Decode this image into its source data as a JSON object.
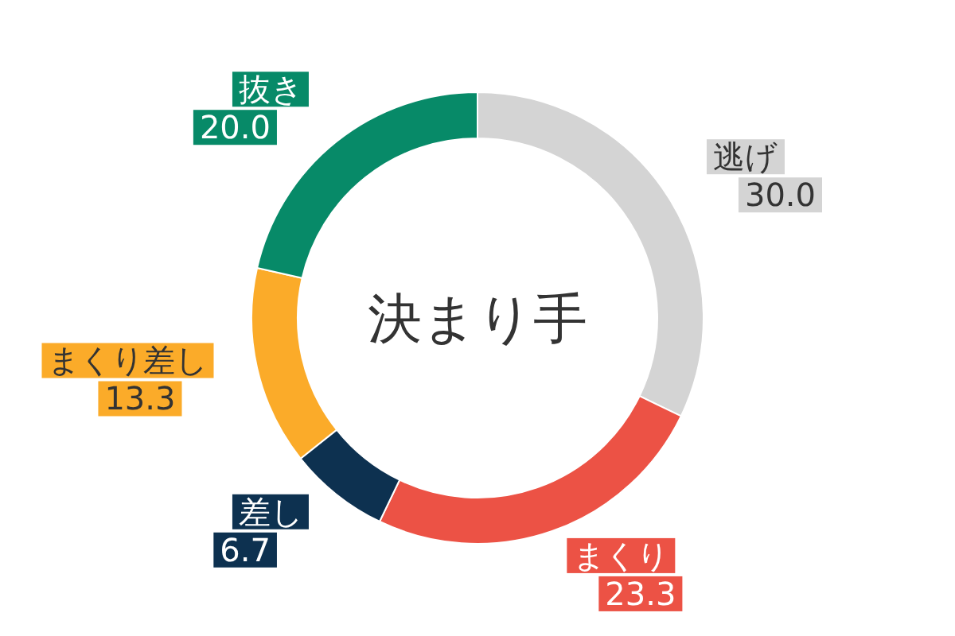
{
  "chart_data": {
    "type": "donut",
    "title": "決まり手",
    "categories": [
      "逃げ",
      "まくり",
      "差し",
      "まくり差し",
      "抜き"
    ],
    "values": [
      30.0,
      23.3,
      6.7,
      13.3,
      20.0
    ],
    "colors": [
      "#d4d4d4",
      "#ec5245",
      "#0d3150",
      "#fbab29",
      "#078a68"
    ],
    "value_labels": [
      "30.0",
      "23.3",
      "6.7",
      "13.3",
      "20.0"
    ]
  }
}
